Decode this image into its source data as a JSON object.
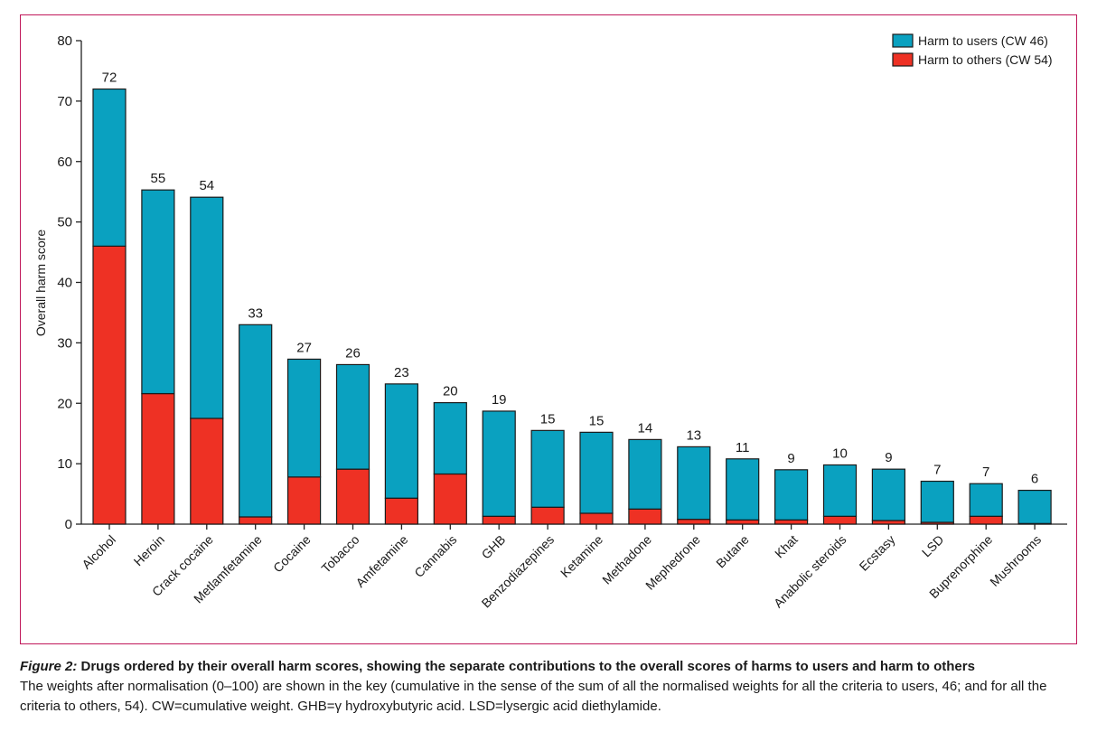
{
  "chart_data": {
    "type": "bar",
    "stacked": true,
    "ylabel": "Overall harm score",
    "xlabel": "",
    "ylim": [
      0,
      80
    ],
    "yticks": [
      0,
      10,
      20,
      30,
      40,
      50,
      60,
      70,
      80
    ],
    "grid": false,
    "legend_position": "top-right",
    "categories": [
      "Alcohol",
      "Heroin",
      "Crack cocaine",
      "Metlamfetamine",
      "Cocaine",
      "Tobacco",
      "Amfetamine",
      "Cannabis",
      "GHB",
      "Benzodiazepines",
      "Ketamine",
      "Methadone",
      "Mephedrone",
      "Butane",
      "Khat",
      "Anabolic steroids",
      "Ecstasy",
      "LSD",
      "Buprenorphine",
      "Mushrooms"
    ],
    "totals_labels": [
      "72",
      "55",
      "54",
      "33",
      "27",
      "26",
      "23",
      "20",
      "19",
      "15",
      "15",
      "14",
      "13",
      "11",
      "9",
      "10",
      "9",
      "7",
      "7",
      "6"
    ],
    "series": [
      {
        "name": "Harm to users (CW 46)",
        "color": "#0aa1c0",
        "values": [
          26,
          33.7,
          36.6,
          31.8,
          19.5,
          17.3,
          18.9,
          11.8,
          17.4,
          12.7,
          13.4,
          11.5,
          12.0,
          10.1,
          8.3,
          8.5,
          8.5,
          6.8,
          5.4,
          5.5
        ]
      },
      {
        "name": "Harm to others (CW 54)",
        "color": "#ee3124",
        "values": [
          46,
          21.6,
          17.5,
          1.2,
          7.8,
          9.1,
          4.3,
          8.3,
          1.3,
          2.8,
          1.8,
          2.5,
          0.8,
          0.7,
          0.7,
          1.3,
          0.6,
          0.3,
          1.3,
          0.1
        ]
      }
    ]
  },
  "caption": {
    "prefix": "Figure 2:",
    "heading": "Drugs ordered by their overall harm scores, showing the separate contributions to the overall scores of harms to users and harm to others",
    "body": "The weights after normalisation (0–100) are shown in the key (cumulative in the sense of the sum of all the normalised weights for all the criteria to users, 46; and for all the criteria to others, 54). CW=cumulative weight. GHB=γ hydroxybutyric acid. LSD=lysergic acid diethylamide."
  }
}
